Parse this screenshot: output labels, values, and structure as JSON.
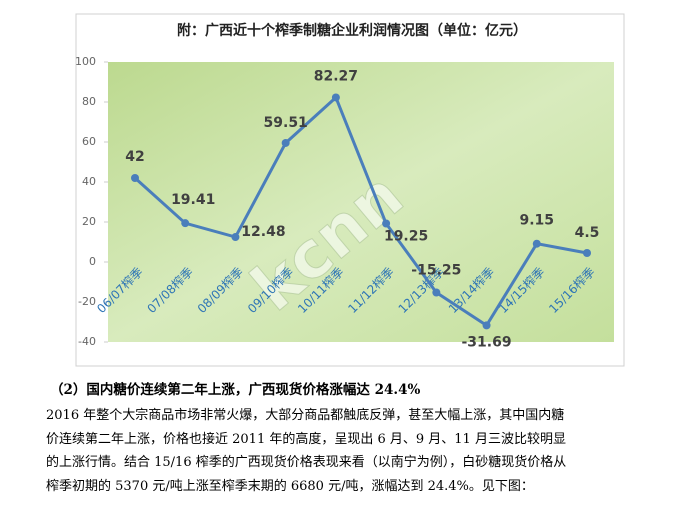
{
  "chart_data": {
    "type": "line",
    "title": "附：广西近十个榨季制糖企业利润情况图（单位：亿元）",
    "watermark": "kcnn",
    "categories": [
      "06/07榨季",
      "07/08榨季",
      "08/09榨季",
      "09/10榨季",
      "10/11榨季",
      "11/12榨季",
      "12/13榨季",
      "13/14榨季",
      "14/15榨季",
      "15/16榨季"
    ],
    "values": [
      42,
      19.41,
      12.48,
      59.51,
      82.27,
      19.25,
      -15.25,
      -31.69,
      9.15,
      4.5
    ],
    "color": "#4a7ebb",
    "ylim": [
      -40,
      100
    ],
    "yticks": [
      -40,
      -20,
      0,
      20,
      40,
      60,
      80,
      100
    ],
    "grid": false
  },
  "section": {
    "heading": "（2）国内糖价连续第二年上涨，广西现货价格涨幅达 24.4%",
    "lines": [
      "2016 年整个大宗商品市场非常火爆，大部分商品都触底反弹，甚至大幅上涨，其中国内糖",
      "价连续第二年上涨，价格也接近 2011 年的高度，呈现出 6 月、9 月、11 月三波比较明显",
      "的上涨行情。结合 15/16 榨季的广西现货价格表现来看（以南宁为例），白砂糖现货价格从",
      "榨季初期的 5370 元/吨上涨至榨季末期的 6680 元/吨，涨幅达到 24.4%。见下图："
    ]
  }
}
